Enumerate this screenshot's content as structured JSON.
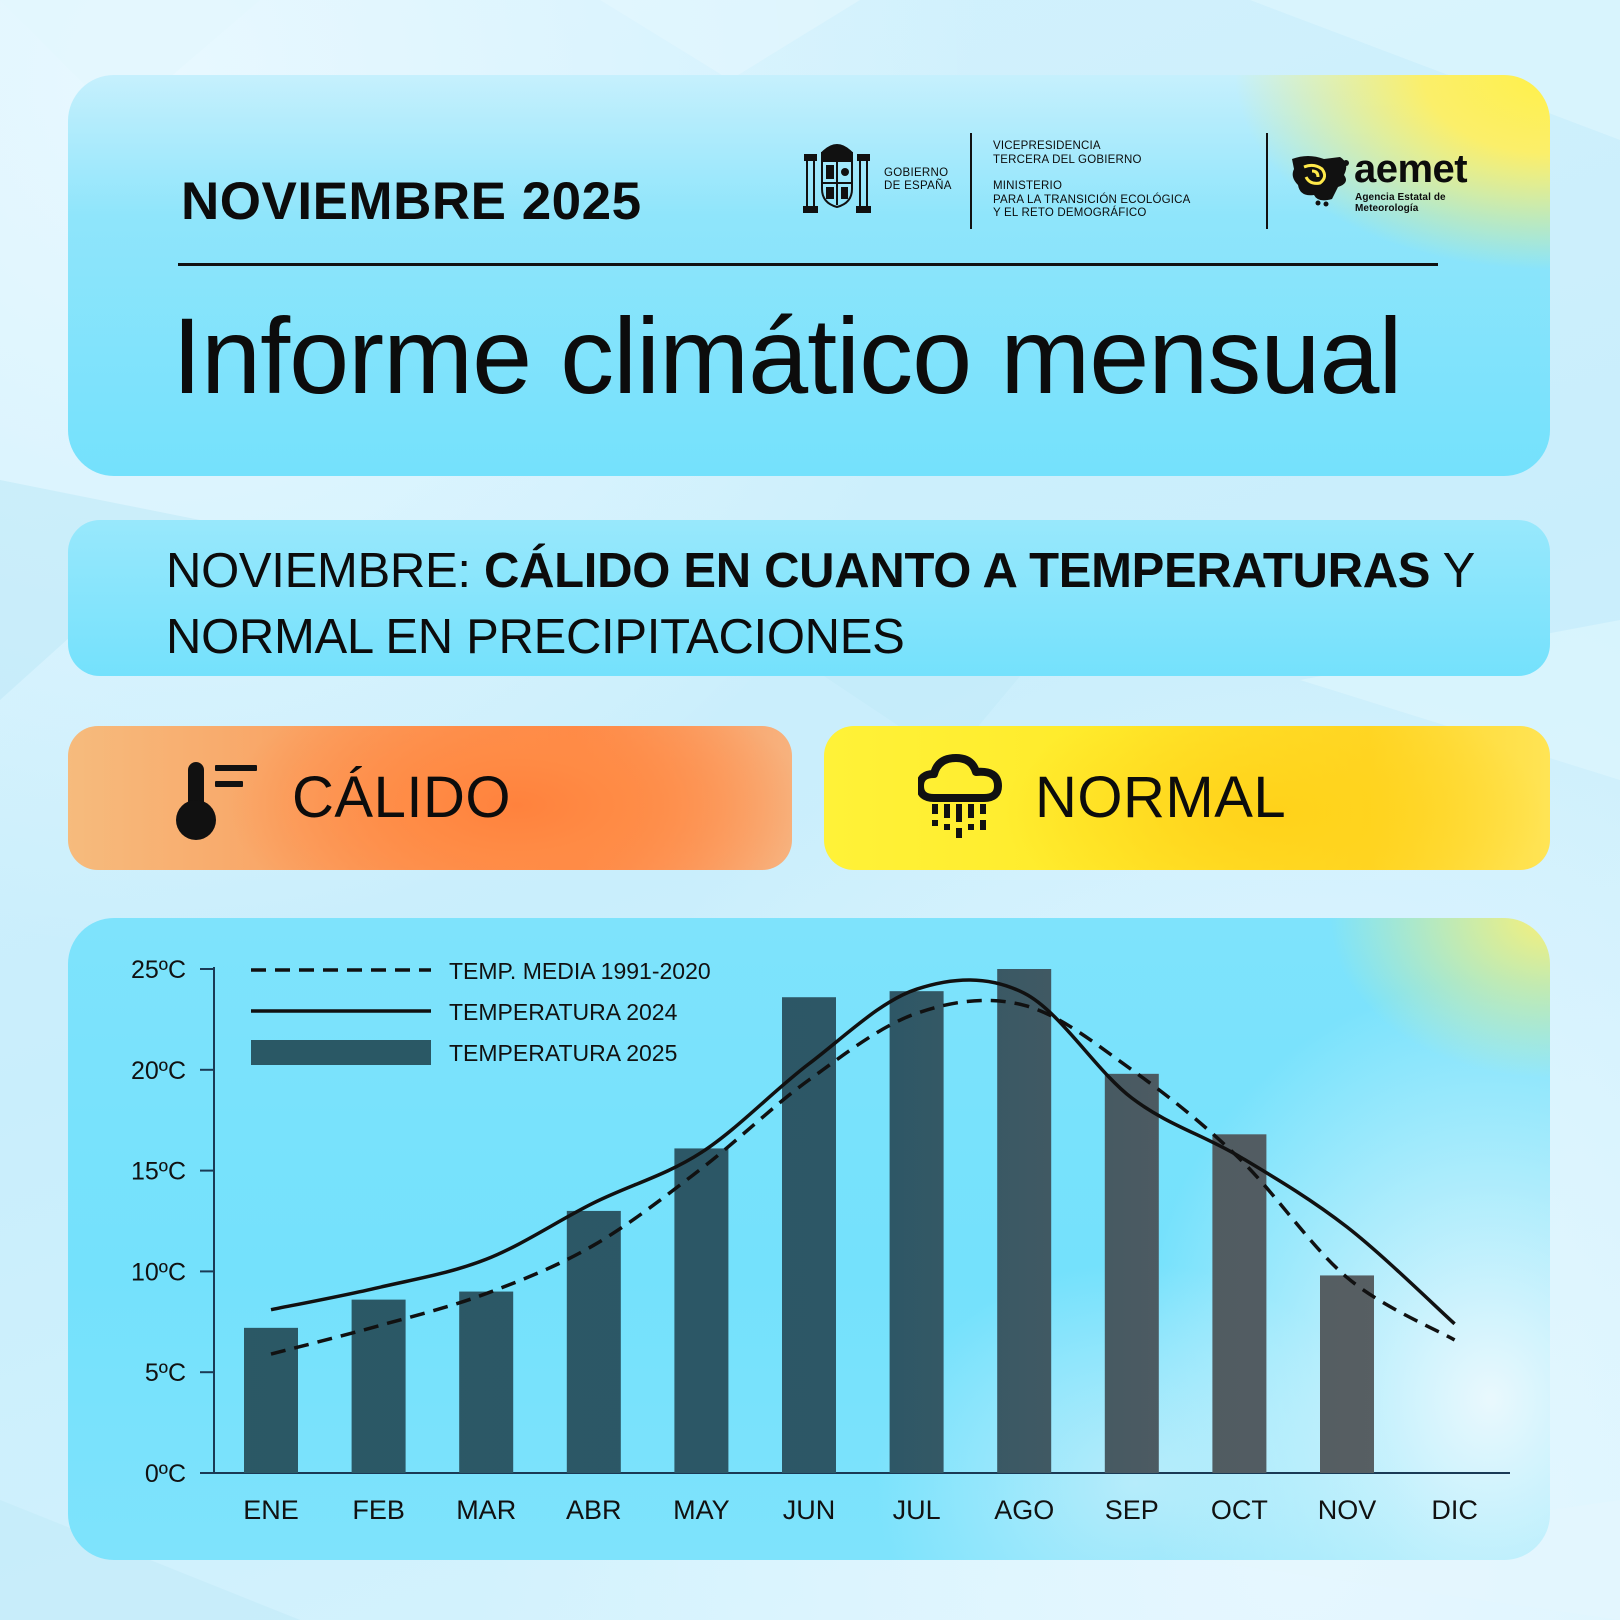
{
  "header": {
    "month": "NOVIEMBRE 2025",
    "title": "Informe climático mensual",
    "gov_lines": [
      "GOBIERNO",
      "DE ESPAÑA"
    ],
    "vice_lines": [
      "VICEPRESIDENCIA",
      "TERCERA DEL GOBIERNO"
    ],
    "ministry_lines": [
      "MINISTERIO",
      "PARA LA TRANSICIÓN ECOLÓGICA",
      "Y EL RETO DEMOGRÁFICO"
    ],
    "aemet_word": "aemet",
    "aemet_sub": "Agencia Estatal de Meteorología"
  },
  "summary": {
    "prefix": "NOVIEMBRE: ",
    "bold": "CÁLIDO EN CUANTO A TEMPERATURAS",
    "suffix": " Y NORMAL EN PRECIPITACIONES"
  },
  "status": {
    "temperature": {
      "label": "CÁLIDO",
      "icon": "thermometer-icon",
      "color": "#ff8a4a"
    },
    "precipitation": {
      "label": "NORMAL",
      "icon": "rain-cloud-icon",
      "color": "#ffe52e"
    }
  },
  "chart_data": {
    "type": "bar",
    "categories": [
      "ENE",
      "FEB",
      "MAR",
      "ABR",
      "MAY",
      "JUN",
      "JUL",
      "AGO",
      "SEP",
      "OCT",
      "NOV",
      "DIC"
    ],
    "y_ticks": [
      "0ºC",
      "5ºC",
      "10ºC",
      "15ºC",
      "20ºC",
      "25ºC"
    ],
    "ylim": [
      0,
      25
    ],
    "legend_position": "top-left",
    "series": [
      {
        "name": "TEMP. MEDIA 1991-2020",
        "type": "line",
        "style": "dashed",
        "values": [
          5.9,
          7.3,
          8.9,
          11.3,
          15.1,
          19.5,
          22.8,
          23.2,
          20.0,
          15.6,
          9.7,
          6.6
        ]
      },
      {
        "name": "TEMPERATURA 2024",
        "type": "line",
        "style": "solid",
        "values": [
          8.1,
          9.2,
          10.6,
          13.4,
          15.9,
          20.3,
          24.0,
          23.8,
          18.6,
          15.7,
          12.2,
          7.4
        ]
      },
      {
        "name": "TEMPERATURA 2025",
        "type": "bar",
        "values": [
          7.2,
          8.6,
          9.0,
          13.0,
          16.1,
          23.6,
          23.9,
          25.0,
          19.8,
          16.8,
          9.8,
          null
        ]
      }
    ],
    "colors": {
      "bars_top": "#2a5865",
      "bars_bottom": "#5e6264",
      "lines": "#111111"
    }
  }
}
